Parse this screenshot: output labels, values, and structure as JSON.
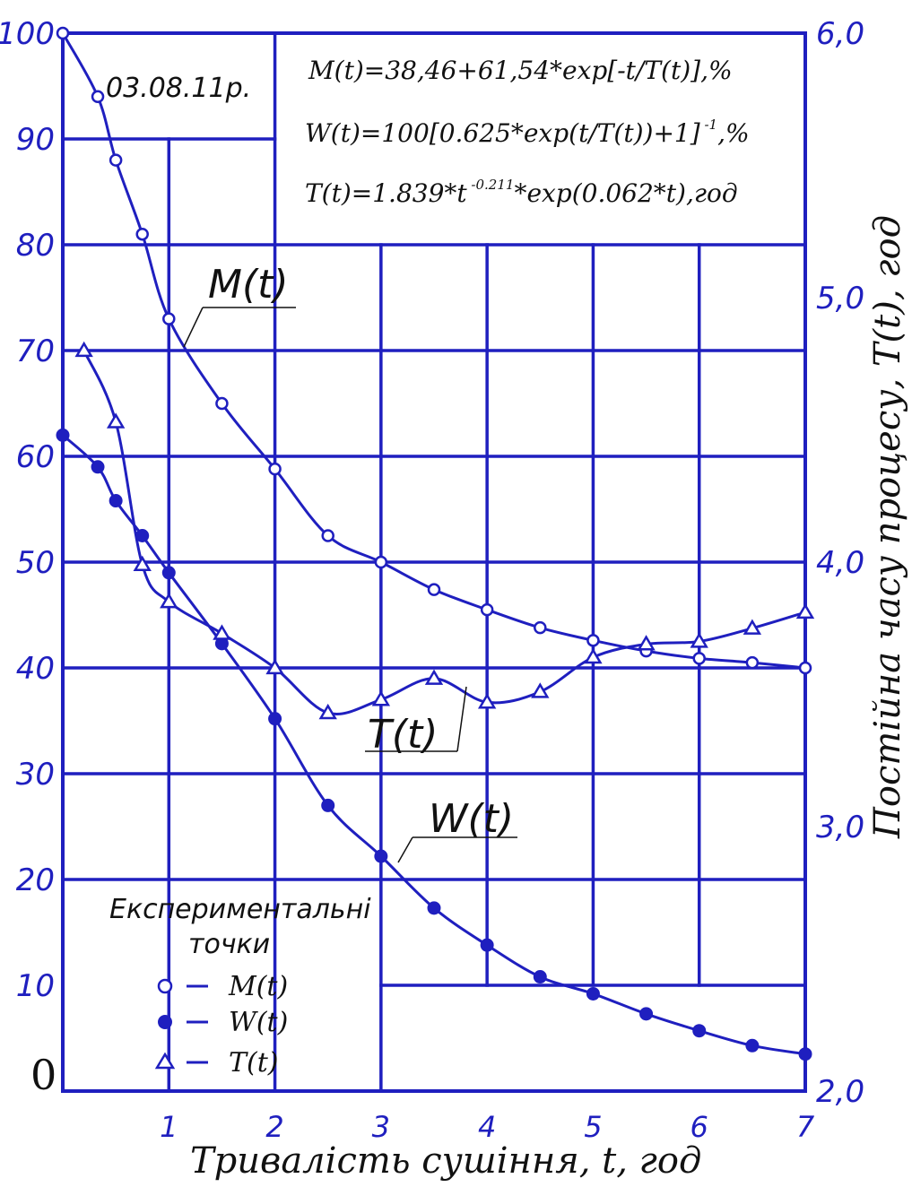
{
  "chart_data": {
    "type": "line",
    "xlabel": "Тривалість сушіння, t, год",
    "ylabel_right": "Постійна часу процесу, T(t), год",
    "xlim": [
      0,
      7
    ],
    "ylim_left": [
      0,
      100
    ],
    "ylim_right": [
      2.0,
      6.0
    ],
    "x_ticks": [
      "1",
      "2",
      "3",
      "4",
      "5",
      "6",
      "7"
    ],
    "y_left_ticks": [
      "0",
      "10",
      "20",
      "30",
      "40",
      "50",
      "60",
      "70",
      "80",
      "90",
      "100"
    ],
    "y_right_ticks": [
      "2,0",
      "3,0",
      "4,0",
      "5,0",
      "6,0"
    ],
    "date_label": "03.08.11р.",
    "formulas": [
      {
        "main": "M(t)=38,46+61,54*exp[-t/T(t)],%",
        "sup": "",
        "tail": ""
      },
      {
        "main": "W(t)=100[0.625*exp(t/T(t))+1]",
        "sup": "-1",
        "tail": ",%"
      },
      {
        "main": "T(t)=1.839*t",
        "sup": "-0.211",
        "tail": "*exp(0.062*t),год"
      }
    ],
    "curve_labels": {
      "M": "M(t)",
      "T": "T(t)",
      "W": "W(t)"
    },
    "legend": {
      "title_line1": "Експериментальні",
      "title_line2": "точки",
      "items": [
        {
          "marker": "open-circle",
          "text": "M(t)"
        },
        {
          "marker": "filled-circle",
          "text": "W(t)"
        },
        {
          "marker": "triangle",
          "text": "T(t)"
        }
      ]
    },
    "grid": true,
    "line_color": "#1f1fbf",
    "series": [
      {
        "name": "M(t)",
        "axis": "left",
        "marker": "open-circle",
        "points": [
          [
            0,
            100
          ],
          [
            0.33,
            94
          ],
          [
            0.5,
            88
          ],
          [
            0.75,
            81
          ],
          [
            1,
            73
          ],
          [
            1.5,
            65
          ],
          [
            2,
            58.8
          ],
          [
            2.5,
            52.5
          ],
          [
            3,
            50
          ],
          [
            3.5,
            47.4
          ],
          [
            4,
            45.5
          ],
          [
            4.5,
            43.8
          ],
          [
            5,
            42.6
          ],
          [
            5.5,
            41.6
          ],
          [
            6,
            40.9
          ],
          [
            6.5,
            40.5
          ],
          [
            7,
            40
          ]
        ]
      },
      {
        "name": "W(t)",
        "axis": "left",
        "marker": "filled-circle",
        "points": [
          [
            0,
            62
          ],
          [
            0.33,
            59
          ],
          [
            0.5,
            55.8
          ],
          [
            0.75,
            52.5
          ],
          [
            1,
            49
          ],
          [
            1.5,
            42.3
          ],
          [
            2,
            35.2
          ],
          [
            2.5,
            27
          ],
          [
            3,
            22.2
          ],
          [
            3.5,
            17.3
          ],
          [
            4,
            13.8
          ],
          [
            4.5,
            10.8
          ],
          [
            5,
            9.2
          ],
          [
            5.5,
            7.3
          ],
          [
            6,
            5.7
          ],
          [
            6.5,
            4.3
          ],
          [
            7,
            3.5
          ]
        ]
      },
      {
        "name": "T(t)",
        "axis": "right",
        "marker": "triangle",
        "points": [
          [
            0.2,
            4.8
          ],
          [
            0.5,
            4.53
          ],
          [
            0.75,
            3.99
          ],
          [
            1,
            3.85
          ],
          [
            1.5,
            3.73
          ],
          [
            2,
            3.6
          ],
          [
            2.5,
            3.43
          ],
          [
            3,
            3.48
          ],
          [
            3.5,
            3.56
          ],
          [
            4,
            3.47
          ],
          [
            4.5,
            3.51
          ],
          [
            5,
            3.64
          ],
          [
            5.5,
            3.69
          ],
          [
            6,
            3.7
          ],
          [
            6.5,
            3.75
          ],
          [
            7,
            3.81
          ]
        ]
      }
    ]
  }
}
